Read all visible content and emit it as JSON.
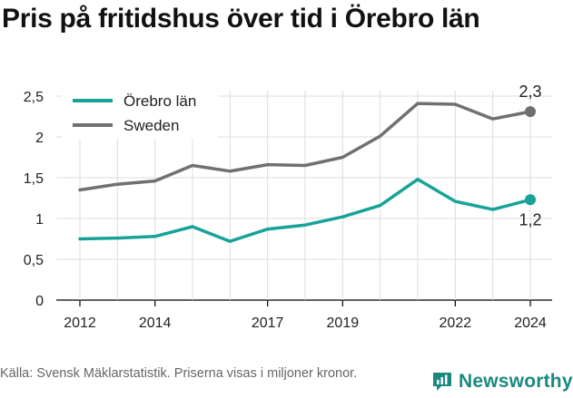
{
  "title": "Pris på fritidshus över tid i Örebro län",
  "source": "Källa: Svensk Mäklarstatistik. Priserna visas i miljoner kronor.",
  "brand": "Newsworthy",
  "colors": {
    "orebro": "#17a398",
    "sweden": "#707074",
    "grid": "#dddddd",
    "brand": "#1a8a80"
  },
  "chart_data": {
    "type": "line",
    "x": [
      2012,
      2013,
      2014,
      2015,
      2016,
      2017,
      2018,
      2019,
      2020,
      2021,
      2022,
      2023,
      2024
    ],
    "xticks": [
      "2012",
      "2014",
      "2017",
      "2019",
      "2022",
      "2024"
    ],
    "yticks": [
      "0",
      "0,5",
      "1",
      "1,5",
      "2",
      "2,5"
    ],
    "ylim": [
      0,
      2.5
    ],
    "grid": true,
    "legend_position": "top-left",
    "series": [
      {
        "name": "Örebro län",
        "color": "#17a398",
        "values": [
          0.75,
          0.76,
          0.78,
          0.9,
          0.72,
          0.87,
          0.92,
          1.02,
          1.16,
          1.48,
          1.21,
          1.11,
          1.23
        ],
        "end_label": "1,2"
      },
      {
        "name": "Sweden",
        "color": "#707074",
        "values": [
          1.35,
          1.42,
          1.46,
          1.65,
          1.58,
          1.66,
          1.65,
          1.75,
          2.01,
          2.41,
          2.4,
          2.22,
          2.31
        ],
        "end_label": "2,3"
      }
    ]
  }
}
